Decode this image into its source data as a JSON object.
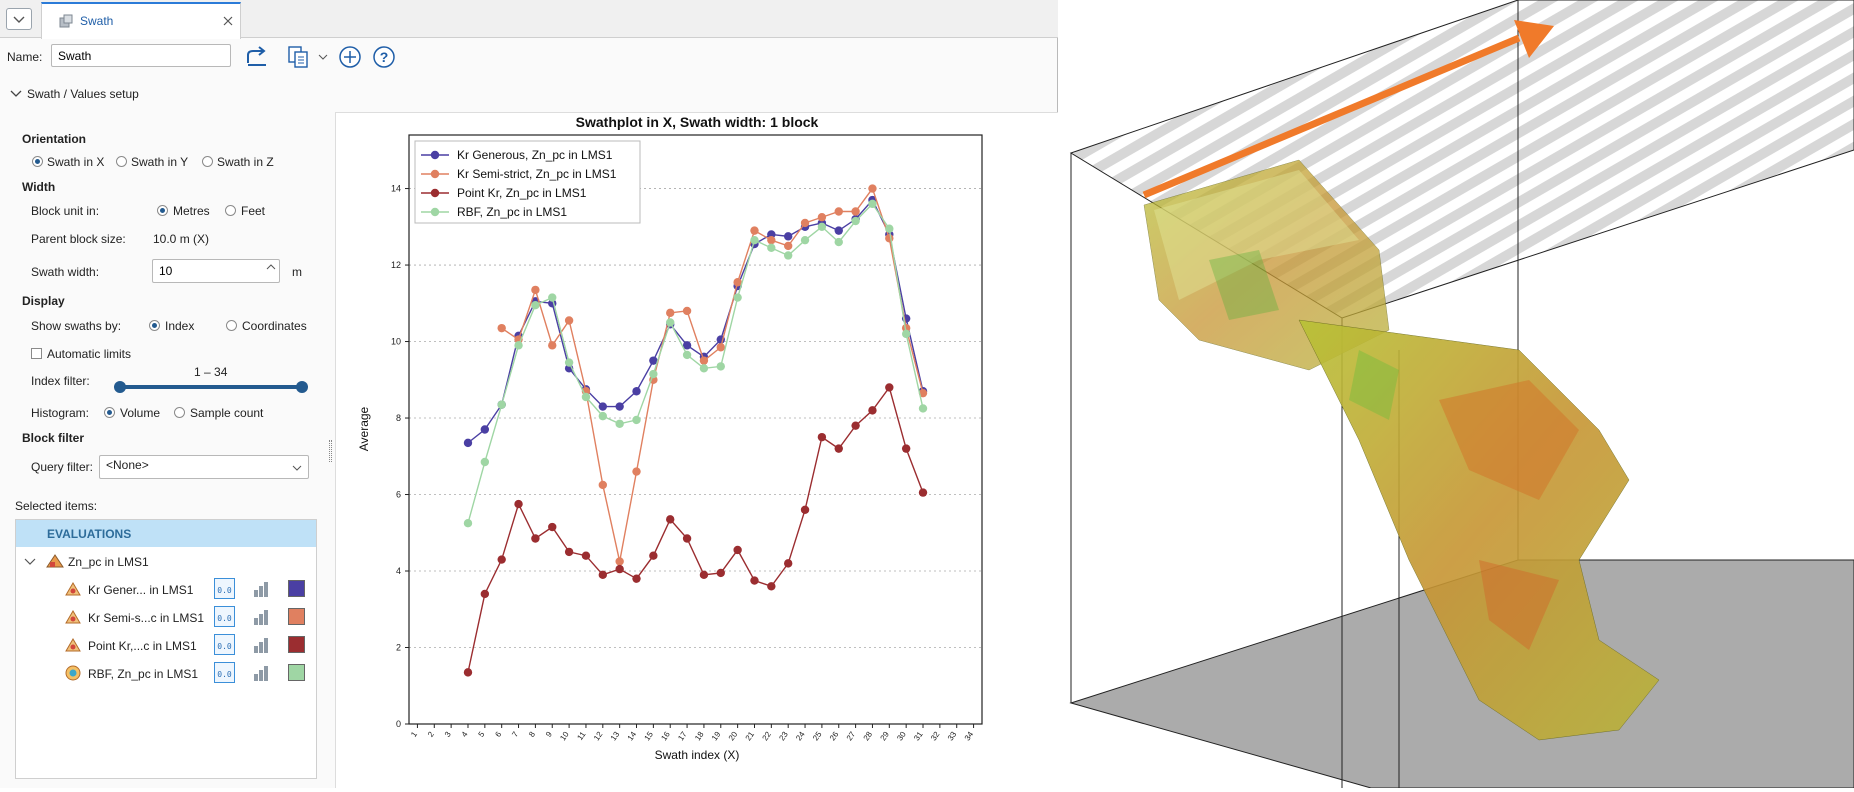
{
  "tab": {
    "title": "Swath"
  },
  "toolbar": {
    "name_label": "Name:",
    "name_value": "Swath"
  },
  "section": {
    "title": "Swath / Values setup"
  },
  "orientation": {
    "heading": "Orientation",
    "options": [
      "Swath in X",
      "Swath in Y",
      "Swath in Z"
    ],
    "selected": "Swath in X"
  },
  "width": {
    "heading": "Width",
    "block_unit_label": "Block unit in:",
    "unit_options": [
      "Metres",
      "Feet"
    ],
    "unit_selected": "Metres",
    "parent_block_label": "Parent block size:",
    "parent_block_value": "10.0 m  (X)",
    "swath_width_label": "Swath width:",
    "swath_width_value": "10",
    "swath_width_unit": "m"
  },
  "display": {
    "heading": "Display",
    "show_by_label": "Show swaths by:",
    "show_by_options": [
      "Index",
      "Coordinates"
    ],
    "show_by_selected": "Index",
    "auto_limits_label": "Automatic limits",
    "auto_limits_checked": false,
    "index_filter_label": "Index filter:",
    "index_filter_range": "1 – 34",
    "index_filter_min": 1,
    "index_filter_max": 34,
    "histogram_label": "Histogram:",
    "histogram_options": [
      "Volume",
      "Sample count"
    ],
    "histogram_selected": "Volume"
  },
  "block_filter": {
    "heading": "Block filter",
    "query_label": "Query filter:",
    "query_value": "<None>"
  },
  "selected_items": {
    "label": "Selected items:",
    "group_header": "EVALUATIONS",
    "parent": "Zn_pc in LMS1",
    "children": [
      {
        "label": "Kr Gener... in LMS1",
        "color": "#4a3fa3"
      },
      {
        "label": "Kr Semi-s...c in LMS1",
        "color": "#e08060"
      },
      {
        "label": "Point Kr,...c in LMS1",
        "color": "#9b2d30"
      },
      {
        "label": "RBF, Zn_pc in LMS1",
        "color": "#9fd6a4"
      }
    ]
  },
  "chart_data": {
    "type": "line",
    "title": "Swathplot in X, Swath width: 1 block",
    "xlabel": "Swath index (X)",
    "ylabel": "Average",
    "x_ticks": [
      1,
      2,
      3,
      4,
      5,
      6,
      7,
      8,
      9,
      10,
      11,
      12,
      13,
      14,
      15,
      16,
      17,
      18,
      19,
      20,
      21,
      22,
      23,
      24,
      25,
      26,
      27,
      28,
      29,
      30,
      31,
      32,
      33,
      34
    ],
    "ylim": [
      0,
      15.4
    ],
    "y_ticks": [
      0,
      2,
      4,
      6,
      8,
      10,
      12,
      14
    ],
    "grid": "horizontal dotted",
    "legend_position": "top-left",
    "series": [
      {
        "name": "Kr Generous, Zn_pc in LMS1",
        "color": "#4a3fa3",
        "x": [
          4,
          5,
          6,
          7,
          8,
          9,
          10,
          11,
          12,
          13,
          14,
          15,
          16,
          17,
          18,
          19,
          20,
          21,
          22,
          23,
          24,
          25,
          26,
          27,
          28,
          29,
          30,
          31
        ],
        "y": [
          7.35,
          7.7,
          8.35,
          10.15,
          11.05,
          11.0,
          9.3,
          8.75,
          8.3,
          8.3,
          8.7,
          9.5,
          10.45,
          9.9,
          9.6,
          10.05,
          11.45,
          12.55,
          12.8,
          12.75,
          13.0,
          13.1,
          12.9,
          13.2,
          13.7,
          12.8,
          10.6,
          8.7
        ]
      },
      {
        "name": "Kr Semi-strict, Zn_pc in LMS1",
        "color": "#e08060",
        "x": [
          6,
          7,
          8,
          9,
          10,
          11,
          12,
          13,
          14,
          15,
          16,
          17,
          18,
          19,
          20,
          21,
          22,
          23,
          24,
          25,
          26,
          27,
          28,
          29,
          30,
          31
        ],
        "y": [
          10.35,
          10.05,
          11.35,
          9.9,
          10.55,
          8.7,
          6.25,
          4.25,
          6.6,
          9.0,
          10.75,
          10.8,
          9.5,
          9.85,
          11.55,
          12.9,
          12.65,
          12.5,
          13.1,
          13.25,
          13.4,
          13.4,
          14.0,
          12.7,
          10.35,
          8.65
        ]
      },
      {
        "name": "Point Kr, Zn_pc in LMS1",
        "color": "#9b2d30",
        "x": [
          4,
          5,
          6,
          7,
          8,
          9,
          10,
          11,
          12,
          13,
          14,
          15,
          16,
          17,
          18,
          19,
          20,
          21,
          22,
          23,
          24,
          25,
          26,
          27,
          28,
          29,
          30,
          31
        ],
        "y": [
          1.35,
          3.4,
          4.3,
          5.75,
          4.85,
          5.15,
          4.5,
          4.4,
          3.9,
          4.05,
          3.8,
          4.4,
          5.35,
          4.85,
          3.9,
          3.95,
          4.55,
          3.75,
          3.6,
          4.2,
          5.6,
          7.5,
          7.2,
          7.8,
          8.2,
          8.8,
          7.2,
          6.05
        ]
      },
      {
        "name": "RBF, Zn_pc in LMS1",
        "color": "#9fd6a4",
        "x": [
          4,
          5,
          6,
          7,
          8,
          9,
          10,
          11,
          12,
          13,
          14,
          15,
          16,
          17,
          18,
          19,
          20,
          21,
          22,
          23,
          24,
          25,
          26,
          27,
          28,
          29,
          30,
          31
        ],
        "y": [
          5.25,
          6.85,
          8.35,
          9.9,
          10.95,
          11.15,
          9.45,
          8.55,
          8.05,
          7.85,
          7.95,
          9.15,
          10.5,
          9.65,
          9.3,
          9.35,
          11.15,
          12.65,
          12.45,
          12.25,
          12.65,
          13.0,
          12.6,
          13.15,
          13.6,
          12.95,
          10.2,
          8.25
        ]
      }
    ]
  },
  "colors": {
    "accent": "#2b7bd8",
    "header_bg": "#bfe1f7",
    "arrow": "#f07a2a"
  }
}
